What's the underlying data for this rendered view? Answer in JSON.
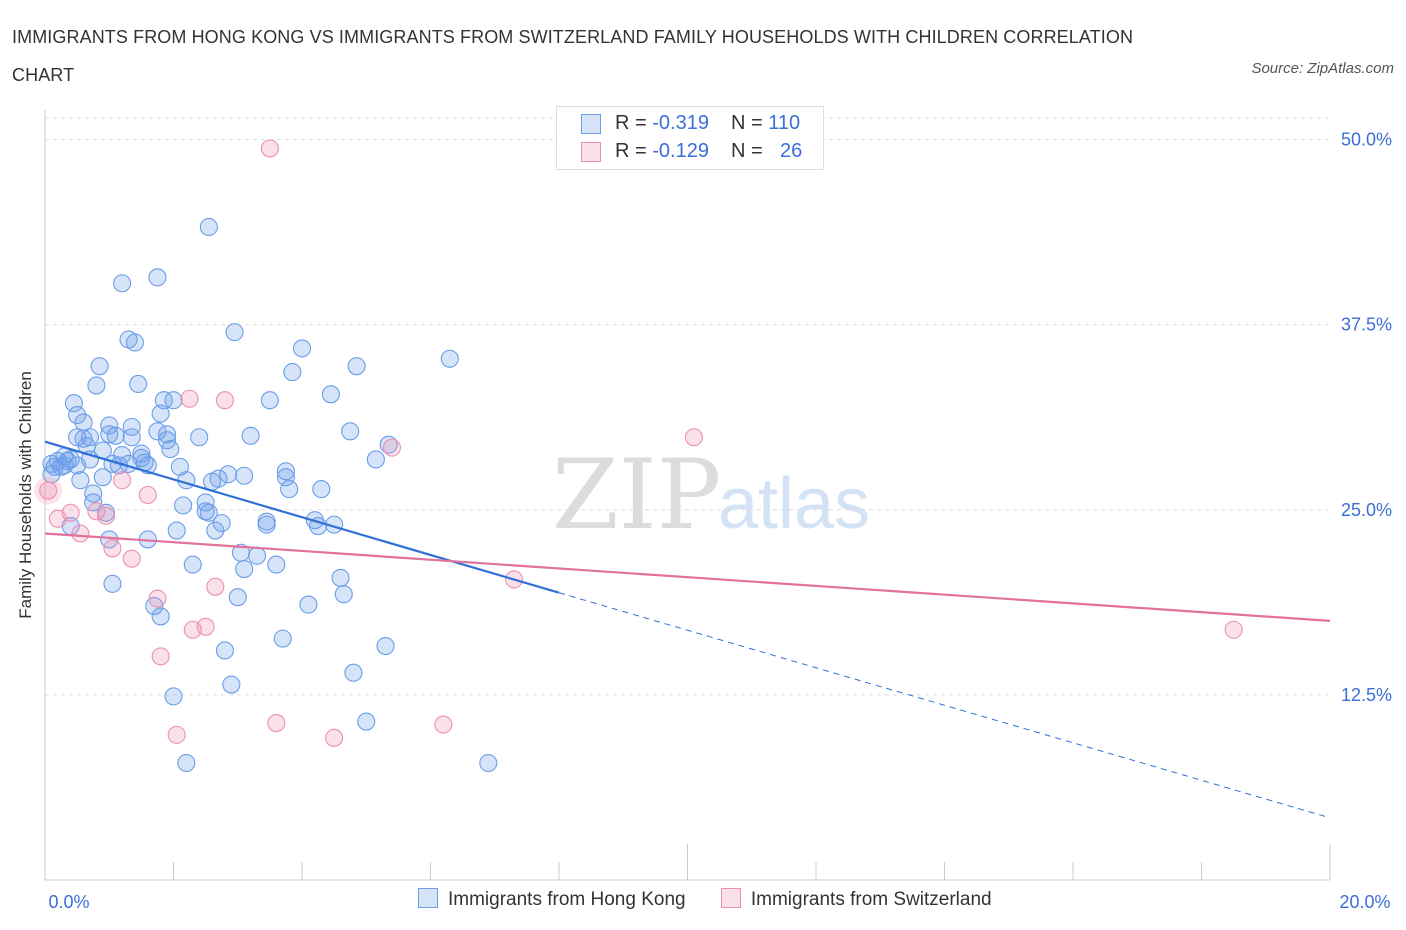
{
  "title": "IMMIGRANTS FROM HONG KONG VS IMMIGRANTS FROM SWITZERLAND FAMILY HOUSEHOLDS WITH CHILDREN CORRELATION CHART",
  "source": "Source: ZipAtlas.com",
  "watermark": {
    "zip": "ZIP",
    "atlas": "atlas"
  },
  "legend_top": [
    {
      "r_label": "R = ",
      "r_value": "-0.319",
      "n_label": "N = ",
      "n_value": "110",
      "color": "#6b9de8"
    },
    {
      "r_label": "R = ",
      "r_value": "-0.129",
      "n_label": "N = ",
      "n_value": "26",
      "color": "#ee8fb0"
    }
  ],
  "chart_data": {
    "type": "scatter",
    "xlabel": "",
    "ylabel": "Family Households with Children",
    "xlim": [
      0,
      20
    ],
    "ylim": [
      0,
      52
    ],
    "x_tick_labels": [
      "0.0%",
      "20.0%"
    ],
    "y_ticks": [
      12.5,
      25.0,
      37.5,
      50.0
    ],
    "y_tick_labels": [
      "12.5%",
      "25.0%",
      "37.5%",
      "50.0%"
    ],
    "grid": true,
    "legend_position": "bottom",
    "series": [
      {
        "name": "Immigrants from Hong Kong",
        "color": "#6b9de8",
        "fill": "rgba(107,157,232,0.28)",
        "trend": {
          "x0": 0.0,
          "y0": 29.6,
          "x1": 8.0,
          "y1": 19.4,
          "dash_to_x": 20.0,
          "dash_to_y": 4.2
        },
        "points": [
          [
            0.1,
            27.4
          ],
          [
            0.1,
            28.1
          ],
          [
            0.15,
            27.9
          ],
          [
            0.2,
            28.3
          ],
          [
            0.25,
            27.9
          ],
          [
            0.3,
            28.6
          ],
          [
            0.3,
            28.0
          ],
          [
            0.35,
            28.3
          ],
          [
            0.4,
            28.4
          ],
          [
            0.4,
            23.9
          ],
          [
            0.45,
            32.2
          ],
          [
            0.5,
            29.9
          ],
          [
            0.5,
            28.0
          ],
          [
            0.5,
            31.4
          ],
          [
            0.55,
            27.0
          ],
          [
            0.6,
            29.8
          ],
          [
            0.6,
            30.9
          ],
          [
            0.65,
            29.3
          ],
          [
            0.7,
            28.4
          ],
          [
            0.7,
            29.9
          ],
          [
            0.75,
            26.1
          ],
          [
            0.75,
            25.5
          ],
          [
            0.8,
            33.4
          ],
          [
            0.85,
            34.7
          ],
          [
            0.9,
            29.0
          ],
          [
            0.9,
            27.2
          ],
          [
            0.95,
            24.8
          ],
          [
            1.0,
            30.7
          ],
          [
            1.0,
            30.1
          ],
          [
            1.05,
            28.1
          ],
          [
            1.05,
            20.0
          ],
          [
            1.1,
            30.0
          ],
          [
            1.15,
            28.0
          ],
          [
            1.2,
            28.7
          ],
          [
            1.3,
            36.5
          ],
          [
            1.3,
            28.1
          ],
          [
            1.35,
            29.9
          ],
          [
            1.35,
            30.6
          ],
          [
            1.4,
            36.3
          ],
          [
            1.45,
            33.5
          ],
          [
            1.5,
            28.8
          ],
          [
            1.5,
            28.5
          ],
          [
            1.55,
            28.2
          ],
          [
            1.6,
            28.0
          ],
          [
            1.6,
            23.0
          ],
          [
            1.7,
            18.5
          ],
          [
            1.75,
            30.3
          ],
          [
            1.75,
            40.7
          ],
          [
            1.8,
            31.5
          ],
          [
            1.8,
            17.8
          ],
          [
            1.85,
            32.4
          ],
          [
            1.9,
            29.7
          ],
          [
            1.9,
            30.1
          ],
          [
            1.95,
            29.1
          ],
          [
            2.0,
            32.4
          ],
          [
            2.05,
            23.6
          ],
          [
            2.1,
            27.9
          ],
          [
            2.15,
            25.3
          ],
          [
            2.2,
            27.0
          ],
          [
            2.3,
            21.3
          ],
          [
            2.4,
            29.9
          ],
          [
            2.5,
            25.5
          ],
          [
            2.5,
            24.9
          ],
          [
            2.55,
            44.1
          ],
          [
            2.55,
            24.8
          ],
          [
            2.6,
            26.9
          ],
          [
            2.65,
            23.6
          ],
          [
            2.7,
            27.1
          ],
          [
            2.75,
            24.1
          ],
          [
            2.8,
            15.5
          ],
          [
            2.85,
            27.4
          ],
          [
            2.9,
            13.2
          ],
          [
            2.95,
            37.0
          ],
          [
            3.0,
            19.1
          ],
          [
            3.05,
            22.1
          ],
          [
            3.1,
            27.3
          ],
          [
            3.1,
            21.0
          ],
          [
            3.2,
            30.0
          ],
          [
            3.3,
            21.9
          ],
          [
            3.45,
            24.2
          ],
          [
            3.5,
            32.4
          ],
          [
            3.6,
            21.3
          ],
          [
            3.7,
            16.3
          ],
          [
            3.75,
            27.6
          ],
          [
            3.75,
            27.2
          ],
          [
            3.8,
            26.4
          ],
          [
            3.85,
            34.3
          ],
          [
            4.0,
            35.9
          ],
          [
            4.1,
            18.6
          ],
          [
            4.2,
            24.3
          ],
          [
            4.25,
            23.9
          ],
          [
            4.3,
            26.4
          ],
          [
            4.5,
            24.0
          ],
          [
            4.45,
            32.8
          ],
          [
            4.6,
            20.4
          ],
          [
            4.65,
            19.3
          ],
          [
            4.75,
            30.3
          ],
          [
            4.8,
            14.0
          ],
          [
            4.85,
            34.7
          ],
          [
            5.0,
            10.7
          ],
          [
            5.15,
            28.4
          ],
          [
            5.35,
            29.4
          ],
          [
            5.3,
            15.8
          ],
          [
            6.3,
            35.2
          ],
          [
            6.9,
            7.9
          ],
          [
            2.2,
            7.9
          ],
          [
            2.0,
            12.4
          ],
          [
            1.2,
            40.3
          ],
          [
            3.45,
            24.0
          ],
          [
            1.0,
            23.0
          ]
        ]
      },
      {
        "name": "Immigrants from Switzerland",
        "color": "#ee8fb0",
        "fill": "rgba(238,143,176,0.28)",
        "trend": {
          "x0": 0.0,
          "y0": 23.4,
          "x1": 20.0,
          "y1": 17.5
        },
        "points": [
          [
            0.05,
            26.3
          ],
          [
            0.2,
            24.4
          ],
          [
            0.4,
            24.8
          ],
          [
            0.55,
            23.4
          ],
          [
            0.8,
            24.9
          ],
          [
            0.95,
            24.6
          ],
          [
            1.05,
            22.4
          ],
          [
            1.2,
            27.0
          ],
          [
            1.35,
            21.7
          ],
          [
            1.6,
            26.0
          ],
          [
            1.75,
            19.0
          ],
          [
            1.8,
            15.1
          ],
          [
            2.05,
            9.8
          ],
          [
            2.25,
            32.5
          ],
          [
            2.3,
            16.9
          ],
          [
            2.5,
            17.1
          ],
          [
            2.65,
            19.8
          ],
          [
            2.8,
            32.4
          ],
          [
            3.5,
            49.4
          ],
          [
            3.6,
            10.6
          ],
          [
            4.5,
            9.6
          ],
          [
            5.4,
            29.2
          ],
          [
            6.2,
            10.5
          ],
          [
            7.3,
            20.3
          ],
          [
            10.1,
            29.9
          ],
          [
            18.5,
            16.9
          ]
        ]
      }
    ]
  }
}
